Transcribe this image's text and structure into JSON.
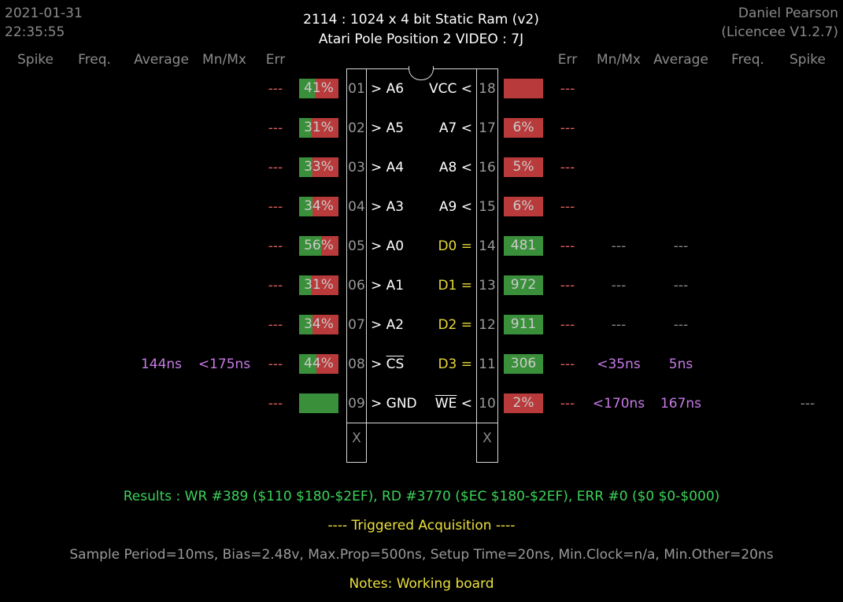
{
  "header": {
    "date": "2021-01-31",
    "time": "22:35:55",
    "title_line1": "2114  :  1024 x 4 bit Static Ram (v2)",
    "title_line2": "Atari Pole Position 2 VIDEO : 7J",
    "author": "Daniel Pearson",
    "licence": "(Licencee V1.2.7)"
  },
  "columns": {
    "left": [
      "Spike",
      "Freq.",
      "Average",
      "Mn/Mx",
      "Err"
    ],
    "right": [
      "Err",
      "Mn/Mx",
      "Average",
      "Freq.",
      "Spike"
    ]
  },
  "colors": {
    "green_fill": "#3a8f3a",
    "red_fill": "#b83a3a",
    "err_text": "#e06060",
    "purple_text": "#c77ae6",
    "results_green": "#3cd25a",
    "yellow_text": "#ece03c"
  },
  "left_pins": [
    {
      "num": "01",
      "label": "> A6",
      "bar_text": "41%",
      "green": 0.41,
      "err": "---",
      "mnmx": "",
      "avg": ""
    },
    {
      "num": "02",
      "label": "> A5",
      "bar_text": "31%",
      "green": 0.31,
      "err": "---",
      "mnmx": "",
      "avg": ""
    },
    {
      "num": "03",
      "label": "> A4",
      "bar_text": "33%",
      "green": 0.33,
      "err": "---",
      "mnmx": "",
      "avg": ""
    },
    {
      "num": "04",
      "label": "> A3",
      "bar_text": "34%",
      "green": 0.34,
      "err": "---",
      "mnmx": "",
      "avg": ""
    },
    {
      "num": "05",
      "label": "> A0",
      "bar_text": "56%",
      "green": 0.56,
      "err": "---",
      "mnmx": "",
      "avg": ""
    },
    {
      "num": "06",
      "label": "> A1",
      "bar_text": "31%",
      "green": 0.31,
      "err": "---",
      "mnmx": "",
      "avg": ""
    },
    {
      "num": "07",
      "label": "> A2",
      "bar_text": "34%",
      "green": 0.34,
      "err": "---",
      "mnmx": "",
      "avg": ""
    },
    {
      "num": "08",
      "label_prefix": "> ",
      "label_over": "CS",
      "bar_text": "44%",
      "green": 0.44,
      "err": "---",
      "mnmx": "<175ns",
      "avg": "144ns"
    },
    {
      "num": "09",
      "label": "> GND",
      "bar_text": "",
      "green": 1.0,
      "err": "---",
      "mnmx": "",
      "avg": ""
    }
  ],
  "right_pins": [
    {
      "num": "18",
      "label": "VCC <",
      "bar_text": "",
      "green": 0.0,
      "err": "---",
      "mnmx": "",
      "avg": "",
      "spike": "",
      "yellow": false
    },
    {
      "num": "17",
      "label": "A7 <",
      "bar_text": "6%",
      "green": 0.0,
      "err": "---",
      "mnmx": "",
      "avg": "",
      "spike": "",
      "yellow": false
    },
    {
      "num": "16",
      "label": "A8 <",
      "bar_text": "5%",
      "green": 0.0,
      "err": "---",
      "mnmx": "",
      "avg": "",
      "spike": "",
      "yellow": false
    },
    {
      "num": "15",
      "label": "A9 <",
      "bar_text": "6%",
      "green": 0.0,
      "err": "---",
      "mnmx": "",
      "avg": "",
      "spike": "",
      "yellow": false
    },
    {
      "num": "14",
      "label": "D0 =",
      "bar_text": "481",
      "green": 1.0,
      "err": "---",
      "mnmx": "---",
      "avg": "---",
      "spike": "",
      "yellow": true
    },
    {
      "num": "13",
      "label": "D1 =",
      "bar_text": "972",
      "green": 1.0,
      "err": "---",
      "mnmx": "---",
      "avg": "---",
      "spike": "",
      "yellow": true
    },
    {
      "num": "12",
      "label": "D2 =",
      "bar_text": "911",
      "green": 1.0,
      "err": "---",
      "mnmx": "---",
      "avg": "---",
      "spike": "",
      "yellow": true
    },
    {
      "num": "11",
      "label": "D3 =",
      "bar_text": "306",
      "green": 1.0,
      "err": "---",
      "mnmx": "<35ns",
      "avg": "5ns",
      "spike": "",
      "yellow": true
    },
    {
      "num": "10",
      "label_over": "WE",
      "label_suffix": " <",
      "bar_text": "2%",
      "green": 0.0,
      "err": "---",
      "mnmx": "<170ns",
      "avg": "167ns",
      "spike": "---",
      "yellow": false
    }
  ],
  "extra_pins": {
    "left": "X",
    "right": "X"
  },
  "footer": {
    "results": "Results  :  WR #389 ($110  $180-$2EF),  RD #3770 ($EC  $180-$2EF),  ERR #0 ($0  $0-$000)",
    "acquisition": "----  Triggered Acquisition  ----",
    "sample": "Sample Period=10ms,  Bias=2.48v,  Max.Prop=500ns,  Setup Time=20ns,  Min.Clock=n/a,  Min.Other=20ns",
    "notes": "Notes:  Working board"
  }
}
